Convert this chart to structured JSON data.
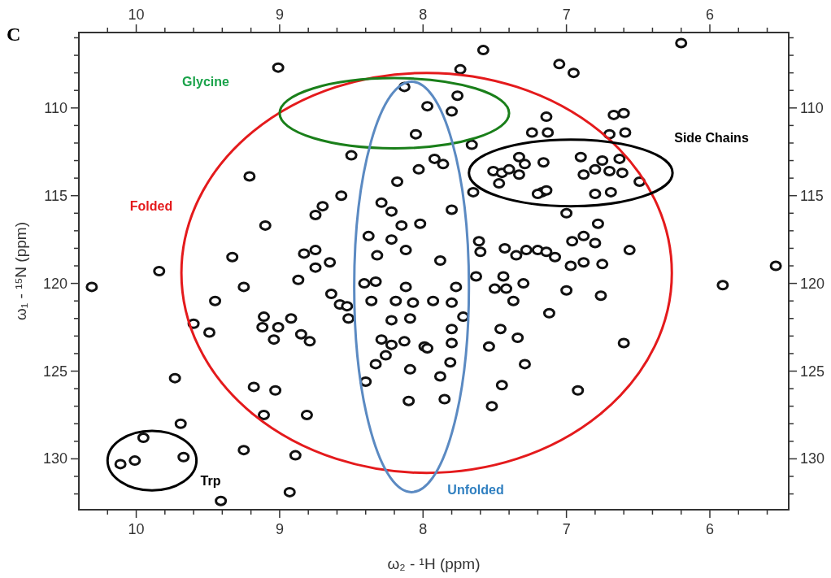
{
  "chart_data": {
    "type": "scatter",
    "xlabel": "ω₂ - ¹H  (ppm)",
    "ylabel": "ω₁ - ¹⁵N  (ppm)",
    "annotations": [
      "C",
      "Glycine",
      "Folded",
      "Unfolded",
      "Side Chains",
      "Trp"
    ],
    "marker": "circle",
    "grid": false,
    "xlim": [
      10.4,
      5.45
    ],
    "ylim": [
      132.9,
      105.7
    ],
    "x2lim": [
      10.4,
      5.45
    ],
    "y2lim": [
      132.9,
      105.7
    ],
    "xticks": [
      {
        "value": 10.2,
        "label": null
      },
      10,
      {
        "value": 9.8,
        "label": null
      },
      {
        "value": 9.6,
        "label": null
      },
      {
        "value": 9.4,
        "label": null
      },
      {
        "value": 9.2,
        "label": null
      },
      9,
      {
        "value": 8.8,
        "label": null
      },
      {
        "value": 8.6,
        "label": null
      },
      {
        "value": 8.4,
        "label": null
      },
      {
        "value": 8.2,
        "label": null
      },
      8,
      {
        "value": 7.8,
        "label": null
      },
      {
        "value": 7.6,
        "label": null
      },
      {
        "value": 7.4,
        "label": null
      },
      {
        "value": 7.2,
        "label": null
      },
      7,
      {
        "value": 6.8,
        "label": null
      },
      {
        "value": 6.6,
        "label": null
      },
      {
        "value": 6.4,
        "label": null
      },
      {
        "value": 6.2,
        "label": null
      },
      6,
      {
        "value": 5.8,
        "label": null
      },
      {
        "value": 5.6,
        "label": null
      }
    ],
    "x2ticks": [
      {
        "value": 10.2,
        "label": null
      },
      10,
      {
        "value": 9.8,
        "label": null
      },
      {
        "value": 9.6,
        "label": null
      },
      {
        "value": 9.4,
        "label": null
      },
      {
        "value": 9.2,
        "label": null
      },
      9,
      {
        "value": 8.8,
        "label": null
      },
      {
        "value": 8.6,
        "label": null
      },
      {
        "value": 8.4,
        "label": null
      },
      {
        "value": 8.2,
        "label": null
      },
      8,
      {
        "value": 7.8,
        "label": null
      },
      {
        "value": 7.6,
        "label": null
      },
      {
        "value": 7.4,
        "label": null
      },
      {
        "value": 7.2,
        "label": null
      },
      7,
      {
        "value": 6.8,
        "label": null
      },
      {
        "value": 6.6,
        "label": null
      },
      {
        "value": 6.4,
        "label": null
      },
      {
        "value": 6.2,
        "label": null
      },
      6,
      {
        "value": 5.8,
        "label": null
      },
      {
        "value": 5.6,
        "label": null
      }
    ],
    "yticks": [
      {
        "value": 106,
        "label": null
      },
      {
        "value": 107,
        "label": null
      },
      {
        "value": 108,
        "label": null
      },
      {
        "value": 109,
        "label": null
      },
      110,
      {
        "value": 111,
        "label": null
      },
      {
        "value": 112,
        "label": null
      },
      {
        "value": 113,
        "label": null
      },
      {
        "value": 114,
        "label": null
      },
      115,
      {
        "value": 116,
        "label": null
      },
      {
        "value": 117,
        "label": null
      },
      {
        "value": 118,
        "label": null
      },
      {
        "value": 119,
        "label": null
      },
      120,
      {
        "value": 121,
        "label": null
      },
      {
        "value": 122,
        "label": null
      },
      {
        "value": 123,
        "label": null
      },
      {
        "value": 124,
        "label": null
      },
      125,
      {
        "value": 126,
        "label": null
      },
      {
        "value": 127,
        "label": null
      },
      {
        "value": 128,
        "label": null
      },
      {
        "value": 129,
        "label": null
      },
      130,
      {
        "value": 131,
        "label": null
      },
      {
        "value": 132,
        "label": null
      }
    ],
    "y2ticks": [
      {
        "value": 106,
        "label": null
      },
      {
        "value": 107,
        "label": null
      },
      {
        "value": 108,
        "label": null
      },
      {
        "value": 109,
        "label": null
      },
      110,
      {
        "value": 111,
        "label": null
      },
      {
        "value": 112,
        "label": null
      },
      {
        "value": 113,
        "label": null
      },
      {
        "value": 114,
        "label": null
      },
      115,
      {
        "value": 116,
        "label": null
      },
      {
        "value": 117,
        "label": null
      },
      {
        "value": 118,
        "label": null
      },
      {
        "value": 119,
        "label": null
      },
      120,
      {
        "value": 121,
        "label": null
      },
      {
        "value": 122,
        "label": null
      },
      {
        "value": 123,
        "label": null
      },
      {
        "value": 124,
        "label": null
      },
      125,
      {
        "value": 126,
        "label": null
      },
      {
        "value": 127,
        "label": null
      },
      {
        "value": 128,
        "label": null
      },
      {
        "value": 129,
        "label": null
      },
      130,
      {
        "value": 131,
        "label": null
      },
      {
        "value": 132,
        "label": null
      }
    ],
    "series": [
      {
        "color": "#111111",
        "x": [
          9.01,
          6.2,
          7.58,
          7.05,
          6.95,
          7.74,
          8.13,
          7.97,
          8.05,
          8.5,
          8.03,
          8.18,
          9.21,
          8.57,
          8.7,
          8.75,
          9.1,
          8.29,
          8.22,
          8.15,
          8.38,
          8.22,
          8.02,
          8.75,
          8.83,
          8.75,
          8.65,
          9.33,
          9.84,
          8.32,
          8.12,
          7.76,
          7.8,
          7.66,
          7.92,
          7.86,
          7.14,
          7.13,
          7.24,
          6.7,
          6.59,
          6.6,
          6.67,
          7.51,
          7.45,
          7.47,
          7.33,
          7.29,
          7.33,
          7.4,
          7.16,
          7.17,
          7.2,
          7.14,
          6.8,
          6.75,
          6.7,
          6.63,
          6.61,
          6.69,
          6.8,
          6.88,
          6.9,
          6.49,
          7.0,
          6.78,
          6.88,
          6.96,
          6.8,
          6.56,
          5.54,
          7.61,
          7.6,
          7.43,
          7.35,
          7.28,
          7.2,
          7.14,
          7.08,
          6.97,
          6.88,
          6.75,
          7.8,
          7.88,
          7.65,
          10.31,
          9.25,
          8.87,
          9.45,
          9.6,
          9.49,
          9.11,
          9.12,
          9.01,
          9.04,
          8.92,
          8.85,
          8.79,
          8.64,
          8.58,
          8.53,
          8.52,
          9.73,
          9.18,
          9.03,
          9.11,
          8.81,
          9.69,
          9.95,
          10.11,
          10.01,
          9.67,
          9.25,
          8.89,
          8.93,
          9.41,
          8.4,
          8.1,
          8.41,
          8.33,
          8.36,
          8.19,
          8.07,
          8.12,
          8.22,
          8.09,
          8.29,
          8.22,
          8.13,
          8.26,
          8.33,
          8.09,
          7.99,
          7.77,
          7.8,
          7.93,
          7.72,
          7.8,
          7.8,
          7.97,
          7.81,
          7.88,
          7.85,
          7.63,
          7.5,
          7.37,
          7.3,
          7.42,
          7.0,
          6.76,
          7.12,
          7.46,
          7.34,
          7.54,
          7.29,
          7.45,
          7.52,
          6.92,
          6.6,
          5.91,
          7.44
        ],
        "values": [
          107.7,
          106.3,
          106.7,
          107.5,
          108.0,
          107.8,
          108.8,
          109.9,
          111.5,
          112.7,
          113.5,
          114.2,
          113.9,
          115.0,
          115.6,
          116.1,
          116.7,
          115.4,
          115.9,
          116.7,
          117.3,
          117.5,
          116.6,
          118.1,
          118.3,
          119.1,
          118.8,
          118.5,
          119.3,
          118.4,
          118.1,
          109.3,
          110.2,
          112.1,
          112.9,
          113.2,
          110.5,
          111.4,
          111.4,
          111.5,
          111.4,
          110.3,
          110.4,
          113.6,
          113.7,
          114.3,
          112.8,
          113.2,
          113.8,
          113.5,
          113.1,
          114.8,
          114.9,
          114.7,
          113.5,
          113.0,
          113.6,
          112.9,
          113.7,
          114.8,
          114.9,
          113.8,
          112.8,
          114.2,
          116.0,
          116.6,
          117.3,
          117.6,
          117.7,
          118.1,
          119.0,
          117.6,
          118.2,
          118.0,
          118.4,
          118.1,
          118.1,
          118.2,
          118.5,
          119.0,
          118.8,
          118.9,
          115.8,
          118.7,
          114.8,
          120.2,
          120.2,
          119.8,
          121.0,
          122.3,
          122.8,
          121.9,
          122.5,
          122.5,
          123.2,
          122.0,
          122.9,
          123.3,
          120.6,
          121.2,
          121.3,
          122.0,
          125.4,
          125.9,
          126.1,
          127.5,
          127.5,
          128.0,
          128.8,
          130.3,
          130.1,
          129.9,
          129.5,
          129.8,
          131.9,
          132.4,
          125.6,
          126.7,
          120.0,
          119.9,
          121.0,
          121.0,
          121.1,
          120.2,
          122.1,
          122.0,
          123.2,
          123.5,
          123.3,
          124.1,
          124.6,
          124.9,
          123.6,
          120.2,
          121.1,
          121.0,
          121.9,
          122.6,
          123.4,
          123.7,
          124.5,
          125.3,
          126.6,
          119.6,
          120.3,
          121.0,
          120.0,
          120.3,
          120.4,
          120.7,
          121.7,
          122.6,
          123.1,
          123.6,
          124.6,
          125.8,
          127.0,
          126.1,
          123.4,
          120.1,
          119.6
        ]
      }
    ]
  }
}
